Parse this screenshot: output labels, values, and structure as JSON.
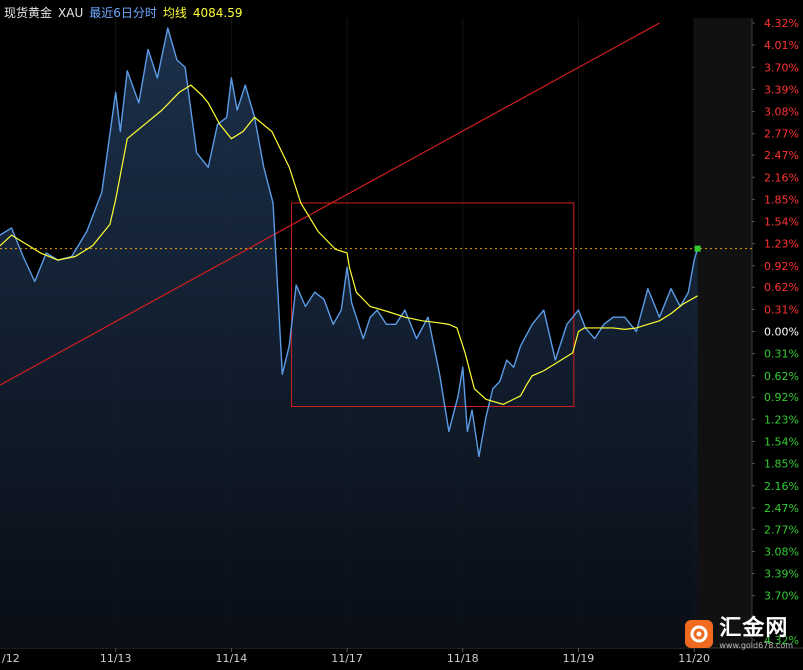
{
  "header": {
    "instrument": "现货黄金",
    "code": "XAU",
    "period": "最近6日分时",
    "ma_label": "均线",
    "price": "4084.59"
  },
  "colors": {
    "background": "#000000",
    "price_line": "#5b9be6",
    "ma_line": "#ffff33",
    "trend_line": "#d21e1e",
    "box": "#d21e1e",
    "up_label": "#ff3333",
    "down_label": "#33cc33",
    "ref_line": "#e8a020"
  },
  "logo": {
    "name": "汇金网",
    "url": "www.gold678.com"
  },
  "chart_data": {
    "type": "line",
    "instrument": "XAU",
    "last_price": 4084.59,
    "x_ticks": [
      "/12",
      "11/13",
      "11/14",
      "11/17",
      "11/18",
      "11/19",
      "11/20"
    ],
    "y_percent_labels": [
      "4.32%",
      "4.01%",
      "3.70%",
      "3.39%",
      "3.08%",
      "2.77%",
      "2.47%",
      "2.16%",
      "1.85%",
      "1.54%",
      "1.23%",
      "0.92%",
      "0.62%",
      "0.31%",
      "0.00%",
      "0.31%",
      "0.62%",
      "0.92%",
      "1.23%",
      "1.54%",
      "1.85%",
      "2.16%",
      "2.47%",
      "2.77%",
      "3.08%",
      "3.39%",
      "3.70%",
      "4.32%"
    ],
    "y_percent_values": [
      4.32,
      4.01,
      3.7,
      3.39,
      3.08,
      2.77,
      2.47,
      2.16,
      1.85,
      1.54,
      1.23,
      0.92,
      0.62,
      0.31,
      0.0,
      -0.31,
      -0.62,
      -0.92,
      -1.23,
      -1.54,
      -1.85,
      -2.16,
      -2.47,
      -2.77,
      -3.08,
      -3.39,
      -3.7,
      -4.32
    ],
    "ylim_pct": [
      -4.32,
      4.32
    ],
    "current_pct": 1.16,
    "session_x": [
      0,
      1,
      2,
      3,
      4,
      5,
      6
    ],
    "xlim": [
      0,
      6.5
    ],
    "series": [
      {
        "name": "price",
        "x": [
          0.0,
          0.1,
          0.2,
          0.3,
          0.4,
          0.5,
          0.62,
          0.75,
          0.88,
          1.0,
          1.04,
          1.1,
          1.2,
          1.28,
          1.36,
          1.45,
          1.53,
          1.6,
          1.7,
          1.8,
          1.88,
          1.96,
          2.0,
          2.05,
          2.12,
          2.2,
          2.28,
          2.36,
          2.44,
          2.5,
          2.56,
          2.64,
          2.72,
          2.8,
          2.88,
          2.95,
          3.0,
          3.04,
          3.08,
          3.14,
          3.2,
          3.26,
          3.34,
          3.42,
          3.5,
          3.6,
          3.7,
          3.8,
          3.88,
          3.96,
          4.0,
          4.04,
          4.08,
          4.14,
          4.2,
          4.26,
          4.32,
          4.38,
          4.44,
          4.5,
          4.6,
          4.7,
          4.8,
          4.9,
          5.0,
          5.06,
          5.14,
          5.22,
          5.3,
          5.4,
          5.5,
          5.6,
          5.7,
          5.8,
          5.88,
          5.95,
          6.0,
          6.03
        ],
        "pct": [
          1.35,
          1.45,
          1.05,
          0.7,
          1.1,
          1.0,
          1.05,
          1.4,
          1.95,
          3.35,
          2.8,
          3.65,
          3.2,
          3.95,
          3.55,
          4.25,
          3.8,
          3.7,
          2.5,
          2.3,
          2.9,
          3.0,
          3.55,
          3.1,
          3.45,
          3.0,
          2.3,
          1.8,
          -0.6,
          -0.2,
          0.65,
          0.35,
          0.55,
          0.45,
          0.1,
          0.3,
          0.9,
          0.4,
          0.2,
          -0.1,
          0.2,
          0.3,
          0.1,
          0.1,
          0.3,
          -0.1,
          0.2,
          -0.6,
          -1.4,
          -0.9,
          -0.5,
          -1.4,
          -1.1,
          -1.75,
          -1.2,
          -0.8,
          -0.7,
          -0.4,
          -0.5,
          -0.2,
          0.1,
          0.3,
          -0.4,
          0.1,
          0.3,
          0.05,
          -0.1,
          0.1,
          0.2,
          0.2,
          0.0,
          0.6,
          0.2,
          0.6,
          0.35,
          0.55,
          1.0,
          1.16
        ]
      },
      {
        "name": "ma",
        "x": [
          0.0,
          0.1,
          0.2,
          0.35,
          0.5,
          0.65,
          0.8,
          0.95,
          1.0,
          1.1,
          1.25,
          1.4,
          1.55,
          1.65,
          1.75,
          1.8,
          1.9,
          2.0,
          2.1,
          2.2,
          2.35,
          2.5,
          2.6,
          2.75,
          2.9,
          3.0,
          3.02,
          3.08,
          3.2,
          3.35,
          3.5,
          3.65,
          3.8,
          3.88,
          3.95,
          4.02,
          4.1,
          4.2,
          4.35,
          4.5,
          4.55,
          4.6,
          4.7,
          4.8,
          4.95,
          5.0,
          5.05,
          5.2,
          5.3,
          5.4,
          5.5,
          5.6,
          5.7,
          5.8,
          5.9,
          6.03
        ],
        "pct": [
          1.2,
          1.35,
          1.25,
          1.1,
          1.0,
          1.05,
          1.2,
          1.5,
          1.85,
          2.7,
          2.9,
          3.1,
          3.35,
          3.45,
          3.3,
          3.2,
          2.9,
          2.7,
          2.8,
          3.0,
          2.8,
          2.3,
          1.8,
          1.4,
          1.15,
          1.1,
          0.9,
          0.55,
          0.35,
          0.28,
          0.2,
          0.15,
          0.12,
          0.1,
          0.05,
          -0.3,
          -0.8,
          -0.95,
          -1.02,
          -0.9,
          -0.75,
          -0.62,
          -0.55,
          -0.45,
          -0.3,
          0.0,
          0.05,
          0.05,
          0.05,
          0.03,
          0.05,
          0.1,
          0.15,
          0.25,
          0.38,
          0.5
        ]
      },
      {
        "name": "trend",
        "x": [
          0.0,
          5.7
        ],
        "pct": [
          -0.75,
          4.32
        ]
      }
    ],
    "rect": {
      "x0": 2.52,
      "x1": 4.96,
      "pct_top": 1.8,
      "pct_bottom": -1.05
    },
    "grid": false
  }
}
